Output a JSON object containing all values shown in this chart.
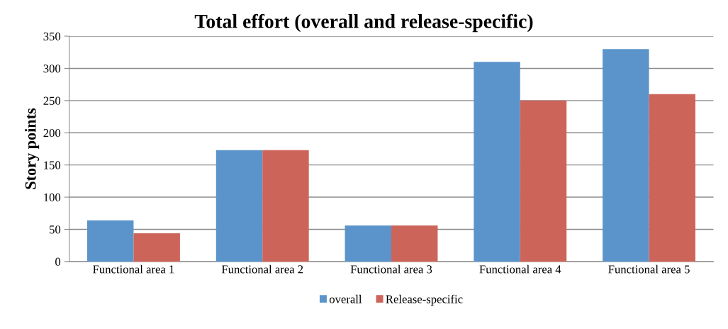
{
  "chart_data": {
    "type": "bar",
    "title": "Total effort (overall and release-specific)",
    "ylabel": "Story points",
    "categories": [
      "Functional area 1",
      "Functional area 2",
      "Functional area 3",
      "Functional area 4",
      "Functional area 5"
    ],
    "series": [
      {
        "name": "overall",
        "color": "#5b94cb",
        "values": [
          64,
          173,
          56,
          310,
          330
        ]
      },
      {
        "name": "Release-specific",
        "color": "#cd645a",
        "values": [
          44,
          173,
          56,
          250,
          260
        ]
      }
    ],
    "ylim": [
      0,
      350
    ],
    "yticks": [
      0,
      50,
      100,
      150,
      200,
      250,
      300,
      350
    ],
    "grid": "y",
    "legend": "bottom"
  }
}
